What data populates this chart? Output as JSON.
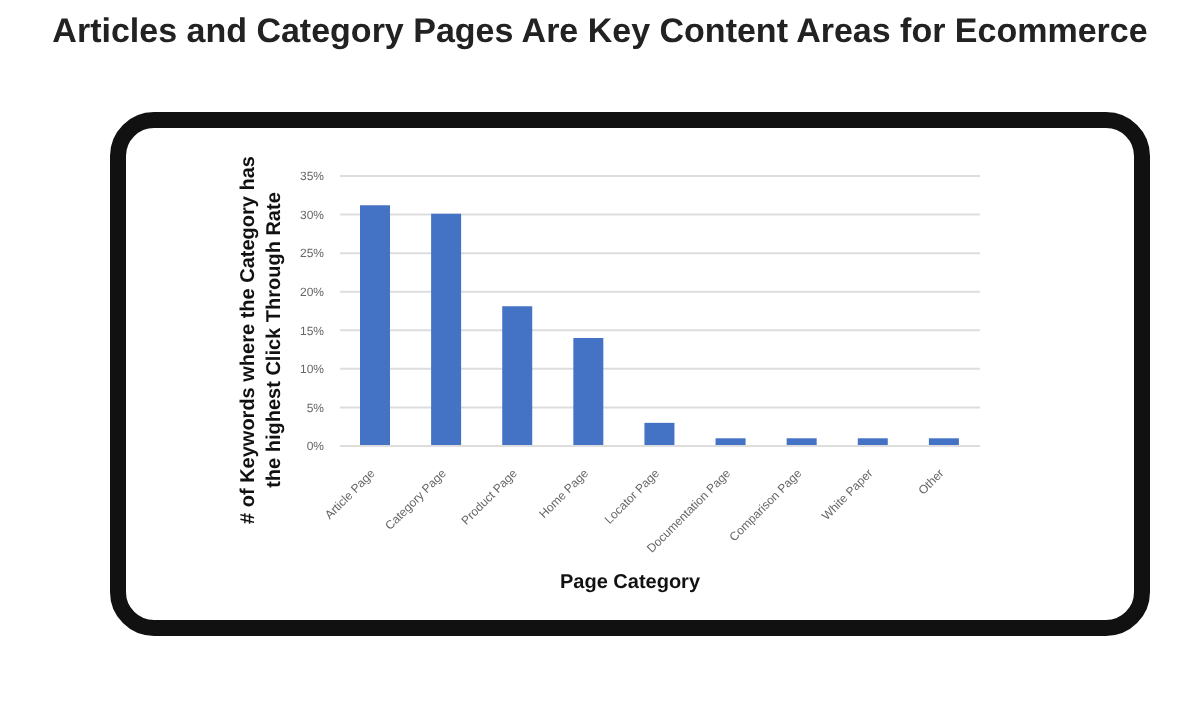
{
  "chart_data": {
    "type": "bar",
    "title": "Articles and Category Pages Are Key Content Areas for Ecommerce",
    "xlabel": "Page Category",
    "ylabel": "# of Keywords where the Category has the highest Click Through Rate",
    "categories": [
      "Article Page",
      "Category Page",
      "Product Page",
      "Home Page",
      "Locator Page",
      "Documentation Page",
      "Comparison Page",
      "White Paper",
      "Other"
    ],
    "values": [
      31.2,
      30.1,
      18.1,
      14.0,
      3.0,
      1.0,
      1.0,
      1.0,
      1.0
    ],
    "color": "#4472c4",
    "ylim": [
      0,
      35
    ],
    "yticks": [
      {
        "value": 0,
        "label": "0%"
      },
      {
        "value": 5,
        "label": "5%"
      },
      {
        "value": 10,
        "label": "10%"
      },
      {
        "value": 15,
        "label": "15%"
      },
      {
        "value": 20,
        "label": "20%"
      },
      {
        "value": 25,
        "label": "25%"
      },
      {
        "value": 30,
        "label": "30%"
      },
      {
        "value": 35,
        "label": "35%"
      }
    ],
    "grid": "y"
  }
}
